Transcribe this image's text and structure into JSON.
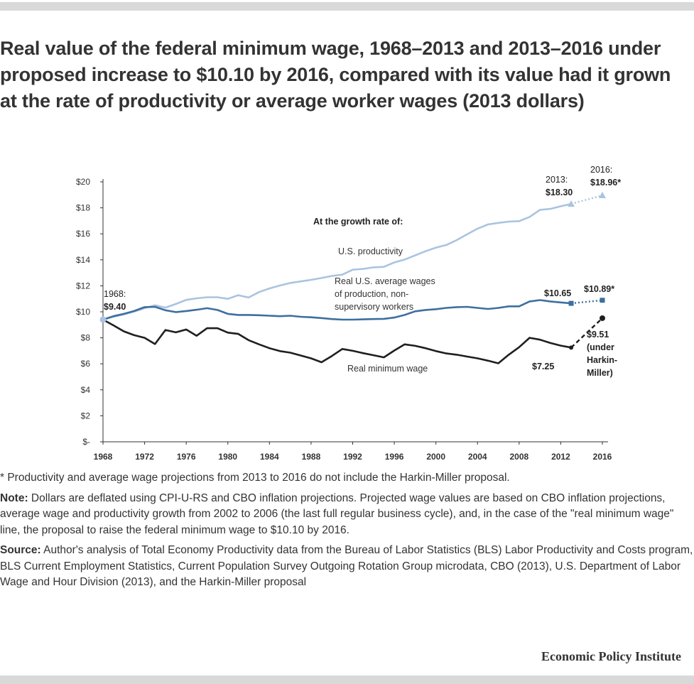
{
  "title": "Real value of the federal minimum wage, 1968–2013 and 2013–2016 under proposed increase to $10.10 by 2016, compared with its value had it grown at the rate of productivity or average worker wages (2013 dollars)",
  "footnote": "* Productivity and average wage projections from 2013 to 2016 do not include the Harkin-Miller proposal.",
  "note": {
    "label": "Note:",
    "text": " Dollars are deflated using CPI-U-RS and CBO inflation projections. Projected wage values are based on CBO inflation projections, average wage and productivity growth from 2002 to 2006 (the last full regular business cycle), and, in the case of the \"real minimum wage\" line, the proposal to raise the federal minimum wage to $10.10 by 2016."
  },
  "source": {
    "label": "Source:",
    "text": " Author's analysis of Total Economy Productivity data from the Bureau of Labor Statistics (BLS) Labor Productivity and Costs program, BLS Current Employment Statistics, Current Population Survey Outgoing Rotation Group microdata, CBO (2013), U.S. Department of Labor Wage and Hour Division (2013), and the Harkin-Miller proposal"
  },
  "brand": "Economic Policy Institute",
  "chart_data": {
    "type": "line",
    "xlim": [
      1968,
      2016
    ],
    "ylim": [
      0,
      20
    ],
    "x_ticks": [
      1968,
      1972,
      1976,
      1980,
      1984,
      1988,
      1992,
      1996,
      2000,
      2004,
      2008,
      2012,
      2016
    ],
    "y_ticks": [
      {
        "v": 0,
        "label": "$-"
      },
      {
        "v": 2,
        "label": "$2"
      },
      {
        "v": 4,
        "label": "$4"
      },
      {
        "v": 6,
        "label": "$6"
      },
      {
        "v": 8,
        "label": "$8"
      },
      {
        "v": 10,
        "label": "$10"
      },
      {
        "v": 12,
        "label": "$12"
      },
      {
        "v": 14,
        "label": "$14"
      },
      {
        "v": 16,
        "label": "$16"
      },
      {
        "v": 18,
        "label": "$18"
      },
      {
        "v": 20,
        "label": "$20"
      }
    ],
    "grid": false,
    "colors": {
      "productivity": "#a9c4e0",
      "wages": "#3e6f9f",
      "minwage": "#1f1f1f"
    },
    "series": [
      {
        "key": "productivity",
        "name": "U.S. productivity",
        "x": [
          1968,
          1969,
          1970,
          1971,
          1972,
          1973,
          1974,
          1975,
          1976,
          1977,
          1978,
          1979,
          1980,
          1981,
          1982,
          1983,
          1984,
          1985,
          1986,
          1987,
          1988,
          1989,
          1990,
          1991,
          1992,
          1993,
          1994,
          1995,
          1996,
          1997,
          1998,
          1999,
          2000,
          2001,
          2002,
          2003,
          2004,
          2005,
          2006,
          2007,
          2008,
          2009,
          2010,
          2011,
          2012,
          2013
        ],
        "y": [
          9.4,
          9.62,
          9.8,
          10.02,
          10.28,
          10.5,
          10.32,
          10.6,
          10.92,
          11.04,
          11.12,
          11.12,
          11.0,
          11.28,
          11.1,
          11.52,
          11.8,
          12.02,
          12.22,
          12.34,
          12.46,
          12.6,
          12.76,
          12.86,
          13.24,
          13.3,
          13.42,
          13.46,
          13.8,
          14.02,
          14.34,
          14.66,
          14.94,
          15.14,
          15.52,
          15.96,
          16.4,
          16.72,
          16.84,
          16.94,
          16.98,
          17.3,
          17.84,
          17.92,
          18.12,
          18.3
        ],
        "proj_x": [
          2013,
          2016
        ],
        "proj_y": [
          18.3,
          18.96
        ]
      },
      {
        "key": "wages",
        "name": "Real U.S. average wages of production, non-supervisory workers",
        "x": [
          1968,
          1969,
          1970,
          1971,
          1972,
          1973,
          1974,
          1975,
          1976,
          1977,
          1978,
          1979,
          1980,
          1981,
          1982,
          1983,
          1984,
          1985,
          1986,
          1987,
          1988,
          1989,
          1990,
          1991,
          1992,
          1993,
          1994,
          1995,
          1996,
          1997,
          1998,
          1999,
          2000,
          2001,
          2002,
          2003,
          2004,
          2005,
          2006,
          2007,
          2008,
          2009,
          2010,
          2011,
          2012,
          2013
        ],
        "y": [
          9.4,
          9.66,
          9.84,
          10.06,
          10.36,
          10.38,
          10.12,
          9.98,
          10.06,
          10.16,
          10.28,
          10.14,
          9.84,
          9.76,
          9.76,
          9.74,
          9.7,
          9.66,
          9.7,
          9.62,
          9.58,
          9.52,
          9.44,
          9.4,
          9.4,
          9.42,
          9.44,
          9.46,
          9.56,
          9.76,
          10.04,
          10.14,
          10.2,
          10.3,
          10.36,
          10.38,
          10.3,
          10.22,
          10.3,
          10.42,
          10.42,
          10.8,
          10.9,
          10.8,
          10.72,
          10.65
        ],
        "proj_x": [
          2013,
          2016
        ],
        "proj_y": [
          10.65,
          10.89
        ]
      },
      {
        "key": "minwage",
        "name": "Real minimum wage",
        "x": [
          1968,
          1969,
          1970,
          1971,
          1972,
          1973,
          1974,
          1975,
          1976,
          1977,
          1978,
          1979,
          1980,
          1981,
          1982,
          1983,
          1984,
          1985,
          1986,
          1987,
          1988,
          1989,
          1990,
          1991,
          1992,
          1993,
          1994,
          1995,
          1996,
          1997,
          1998,
          1999,
          2000,
          2001,
          2002,
          2003,
          2004,
          2005,
          2006,
          2007,
          2008,
          2009,
          2010,
          2011,
          2012,
          2013
        ],
        "y": [
          9.4,
          8.96,
          8.5,
          8.2,
          8.0,
          7.52,
          8.6,
          8.42,
          8.64,
          8.16,
          8.74,
          8.74,
          8.4,
          8.3,
          7.82,
          7.5,
          7.2,
          6.98,
          6.86,
          6.64,
          6.42,
          6.12,
          6.6,
          7.14,
          7.0,
          6.82,
          6.66,
          6.5,
          7.02,
          7.5,
          7.38,
          7.2,
          6.98,
          6.8,
          6.7,
          6.56,
          6.42,
          6.24,
          6.04,
          6.7,
          7.28,
          8.0,
          7.86,
          7.6,
          7.4,
          7.25
        ],
        "proj_x": [
          2013,
          2016
        ],
        "proj_y": [
          7.25,
          9.51
        ]
      }
    ],
    "annotations": {
      "header": "At the growth rate of:",
      "productivity_label": "U.S. productivity",
      "wages_label_lines": [
        "Real U.S. average wages",
        "of production, non-",
        "supervisory workers"
      ],
      "minwage_label": "Real minimum wage",
      "start_label_lines": [
        "1968:",
        "$9.40"
      ],
      "prod_2013_lines": [
        "2013:",
        "$18.30"
      ],
      "prod_2016_lines": [
        "2016:",
        "$18.96*"
      ],
      "wages_2013": "$10.65",
      "wages_2016": "$10.89*",
      "min_2013": "$7.25",
      "min_2016_lines": [
        "$9.51",
        "(under",
        "Harkin-",
        "Miller)"
      ]
    }
  }
}
